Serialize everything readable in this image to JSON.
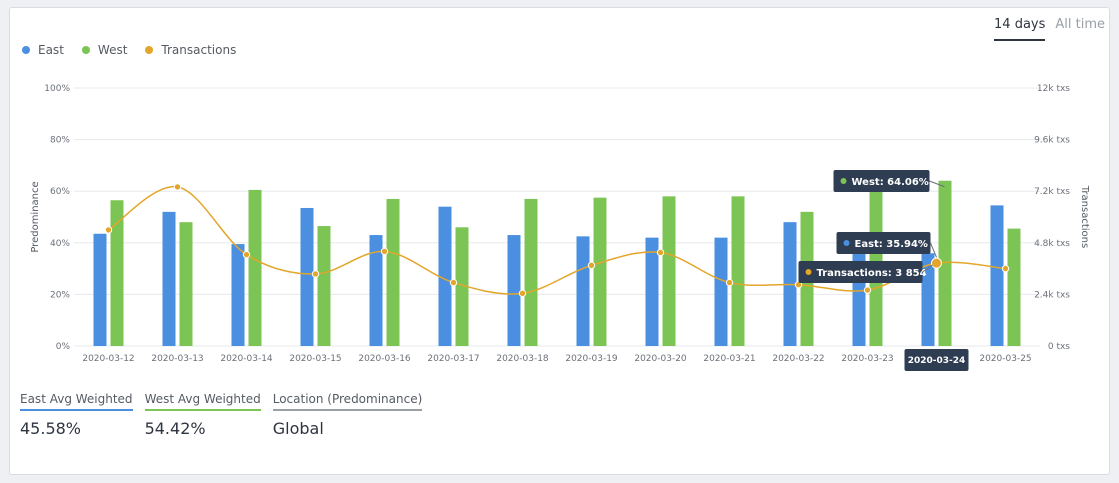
{
  "tabs": [
    {
      "label": "14 days",
      "active": true
    },
    {
      "label": "All time",
      "active": false
    }
  ],
  "legend": [
    {
      "label": "East",
      "color": "#4a8fe0"
    },
    {
      "label": "West",
      "color": "#7cc454"
    },
    {
      "label": "Transactions",
      "color": "#e3a62a"
    }
  ],
  "chart_data": {
    "type": "bar",
    "categories": [
      "2020-03-12",
      "2020-03-13",
      "2020-03-14",
      "2020-03-15",
      "2020-03-16",
      "2020-03-17",
      "2020-03-18",
      "2020-03-19",
      "2020-03-20",
      "2020-03-21",
      "2020-03-22",
      "2020-03-23",
      "2020-03-24",
      "2020-03-25"
    ],
    "series": [
      {
        "name": "East",
        "axis": "left",
        "color": "#4a8fe0",
        "values": [
          43.5,
          52,
          39.5,
          53.5,
          43,
          54,
          43,
          42.5,
          42,
          42,
          48,
          36,
          35.94,
          54.5
        ]
      },
      {
        "name": "West",
        "axis": "left",
        "color": "#7cc454",
        "values": [
          56.5,
          48,
          60.5,
          46.5,
          57,
          46,
          57,
          57.5,
          58,
          58,
          52,
          64,
          64.06,
          45.5
        ]
      },
      {
        "name": "Transactions",
        "axis": "right",
        "type": "line",
        "color": "#e3a62a",
        "values": [
          5400,
          7400,
          4250,
          3350,
          4400,
          2950,
          2450,
          3750,
          4350,
          2950,
          2850,
          2600,
          3854,
          3600
        ]
      }
    ],
    "left_axis": {
      "label": "Predominance",
      "ticks": [
        "0%",
        "20%",
        "40%",
        "60%",
        "80%",
        "100%"
      ],
      "ylim": [
        0,
        100
      ]
    },
    "right_axis": {
      "label": "Transactions",
      "ticks": [
        "0 txs",
        "2.4k txs",
        "4.8k txs",
        "7.2k txs",
        "9.6k txs",
        "12k txs"
      ],
      "ylim": [
        0,
        12000
      ]
    },
    "grid": true,
    "legend_position": "top-left",
    "tooltip": {
      "category": "2020-03-24",
      "west": "West: 64.06%",
      "east": "East: 35.94%",
      "transactions": "Transactions: 3 854"
    }
  },
  "stats": [
    {
      "label": "East Avg Weighted",
      "value": "45.58%",
      "color": "#4a8fe0"
    },
    {
      "label": "West Avg Weighted",
      "value": "54.42%",
      "color": "#7cc454"
    },
    {
      "label": "Location (Predominance)",
      "value": "Global",
      "color": "#9a9fa6"
    }
  ]
}
